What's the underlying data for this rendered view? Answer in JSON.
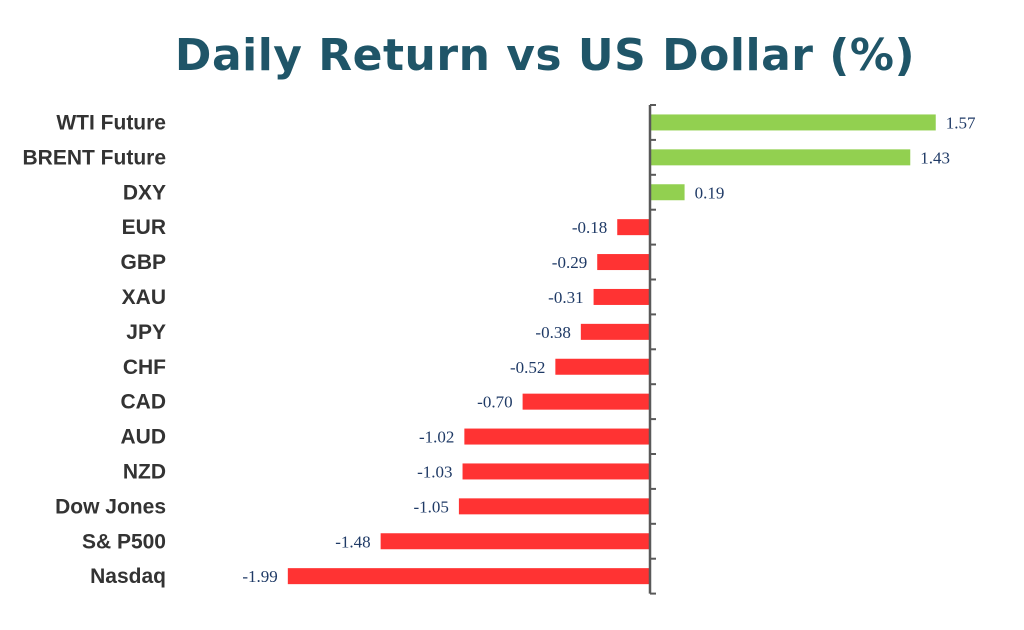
{
  "chart_data": {
    "type": "bar",
    "orientation": "horizontal",
    "title": "Daily Return vs US Dollar (%)",
    "categories": [
      "WTI Future",
      "BRENT Future",
      "DXY",
      "EUR",
      "GBP",
      "XAU",
      "JPY",
      "CHF",
      "CAD",
      "AUD",
      "NZD",
      "Dow Jones",
      "S& P500",
      "Nasdaq"
    ],
    "values": [
      1.57,
      1.43,
      0.19,
      -0.18,
      -0.29,
      -0.31,
      -0.38,
      -0.52,
      -0.7,
      -1.02,
      -1.03,
      -1.05,
      -1.48,
      -1.99
    ],
    "value_labels": [
      "1.57",
      "1.43",
      "0.19",
      "-0.18",
      "-0.29",
      "-0.31",
      "-0.38",
      "-0.52",
      "-0.70",
      "-1.02",
      "-1.03",
      "-1.05",
      "-1.48",
      "-1.99"
    ],
    "xlim": [
      -1.99,
      1.57
    ],
    "grid": false,
    "legend": "none",
    "colors": {
      "positive": "#92d050",
      "negative": "#ff3333",
      "axis": "#595959"
    }
  }
}
